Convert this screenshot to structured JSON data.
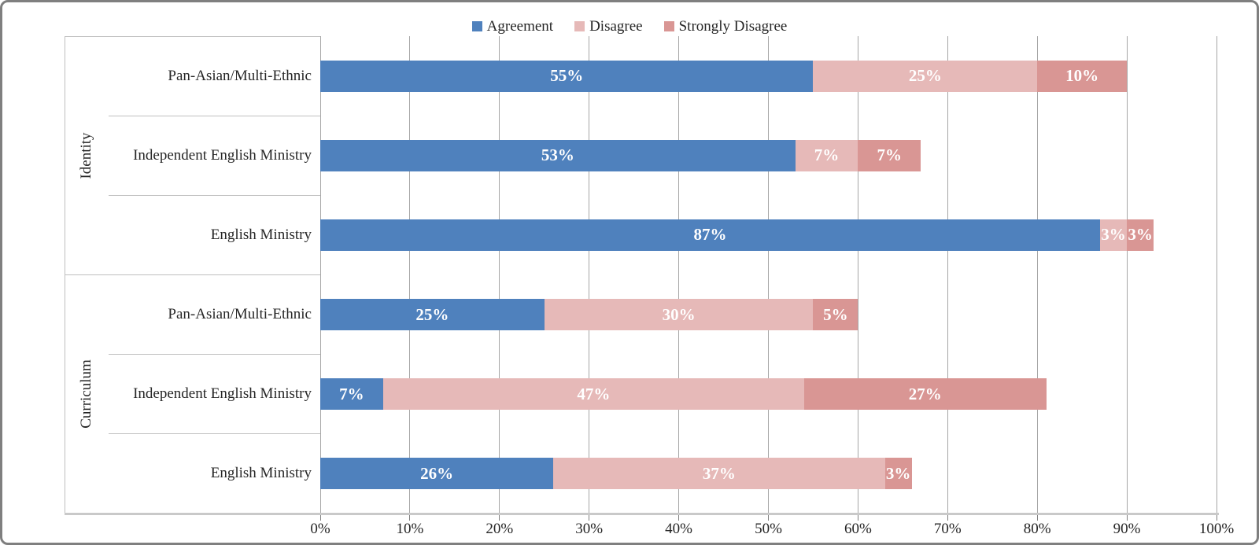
{
  "chart_data": {
    "type": "bar",
    "orientation": "horizontal",
    "stacked": true,
    "title": "",
    "legend_position": "top",
    "grid": true,
    "x_axis": {
      "min": 0,
      "max": 100,
      "step": 10,
      "tick_labels": [
        "0%",
        "10%",
        "20%",
        "30%",
        "40%",
        "50%",
        "60%",
        "70%",
        "80%",
        "90%",
        "100%"
      ]
    },
    "group_labels": [
      "Identity",
      "Curriculum"
    ],
    "categories": [
      {
        "group": "Identity",
        "label": "Pan-Asian/Multi-Ethnic"
      },
      {
        "group": "Identity",
        "label": "Independent English Ministry"
      },
      {
        "group": "Identity",
        "label": "English Ministry"
      },
      {
        "group": "Curriculum",
        "label": "Pan-Asian/Multi-Ethnic"
      },
      {
        "group": "Curriculum",
        "label": "Independent English Ministry"
      },
      {
        "group": "Curriculum",
        "label": "English Ministry"
      }
    ],
    "series": [
      {
        "name": "Agreement",
        "color": "#4F81BD",
        "values": [
          55,
          53,
          87,
          25,
          7,
          26
        ],
        "labels": [
          "55%",
          "53%",
          "87%",
          "25%",
          "7%",
          "26%"
        ]
      },
      {
        "name": "Disagree",
        "color": "#E6B9B8",
        "values": [
          25,
          7,
          3,
          30,
          47,
          37
        ],
        "labels": [
          "25%",
          "7%",
          "3%",
          "30%",
          "47%",
          "37%"
        ]
      },
      {
        "name": "Strongly Disagree",
        "color": "#D99694",
        "values": [
          10,
          7,
          3,
          5,
          27,
          3
        ],
        "labels": [
          "10%",
          "7%",
          "3%",
          "5%",
          "27%",
          "3%"
        ]
      }
    ],
    "data_label_color": "#FFFFFF",
    "gridline_color": "#A6A6A6"
  }
}
